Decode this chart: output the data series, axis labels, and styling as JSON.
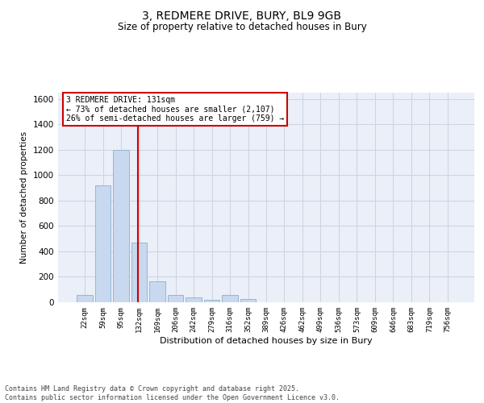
{
  "title_line1": "3, REDMERE DRIVE, BURY, BL9 9GB",
  "title_line2": "Size of property relative to detached houses in Bury",
  "xlabel": "Distribution of detached houses by size in Bury",
  "ylabel": "Number of detached properties",
  "categories": [
    "22sqm",
    "59sqm",
    "95sqm",
    "132sqm",
    "169sqm",
    "206sqm",
    "242sqm",
    "279sqm",
    "316sqm",
    "352sqm",
    "389sqm",
    "426sqm",
    "462sqm",
    "499sqm",
    "536sqm",
    "573sqm",
    "609sqm",
    "646sqm",
    "683sqm",
    "719sqm",
    "756sqm"
  ],
  "values": [
    55,
    920,
    1200,
    470,
    165,
    60,
    40,
    20,
    55,
    25,
    0,
    0,
    0,
    0,
    0,
    0,
    0,
    0,
    0,
    0,
    0
  ],
  "bar_color": "#c8d8ee",
  "bar_edge_color": "#8ab0d0",
  "grid_color": "#ccd4e0",
  "background_color": "#eaeff8",
  "vline_color": "#cc0000",
  "annotation_text": "3 REDMERE DRIVE: 131sqm\n← 73% of detached houses are smaller (2,107)\n26% of semi-detached houses are larger (759) →",
  "annotation_box_color": "#ffffff",
  "annotation_box_edge_color": "#cc0000",
  "footer_text": "Contains HM Land Registry data © Crown copyright and database right 2025.\nContains public sector information licensed under the Open Government Licence v3.0.",
  "ylim": [
    0,
    1650
  ],
  "yticks": [
    0,
    200,
    400,
    600,
    800,
    1000,
    1200,
    1400,
    1600
  ]
}
